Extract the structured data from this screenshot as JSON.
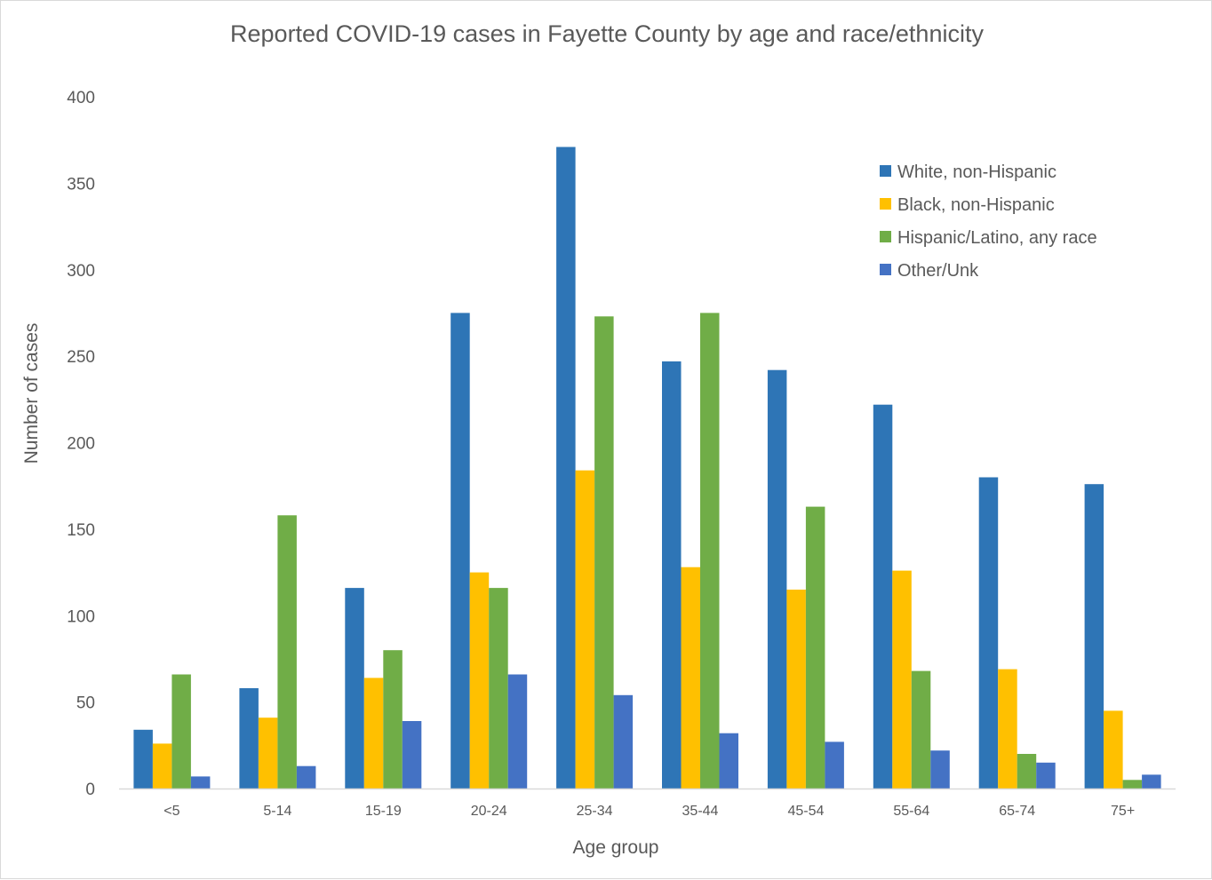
{
  "chart_data": {
    "type": "bar",
    "title": "Reported COVID-19 cases in Fayette County by age and race/ethnicity",
    "xlabel": "Age group",
    "ylabel": "Number of cases",
    "ylim": [
      0,
      400
    ],
    "yticks": [
      0,
      50,
      100,
      150,
      200,
      250,
      300,
      350,
      400
    ],
    "grid": false,
    "legend_position": "top-right",
    "categories": [
      "<5",
      "5-14",
      "15-19",
      "20-24",
      "25-34",
      "35-44",
      "45-54",
      "55-64",
      "65-74",
      "75+"
    ],
    "series": [
      {
        "name": "White, non-Hispanic",
        "color": "#2E75B6",
        "values": [
          34,
          58,
          116,
          275,
          371,
          247,
          242,
          222,
          180,
          176
        ]
      },
      {
        "name": "Black, non-Hispanic",
        "color": "#FFC000",
        "values": [
          26,
          41,
          64,
          125,
          184,
          128,
          115,
          126,
          69,
          45
        ]
      },
      {
        "name": "Hispanic/Latino, any race",
        "color": "#70AD47",
        "values": [
          66,
          158,
          80,
          116,
          273,
          275,
          163,
          68,
          20,
          5
        ]
      },
      {
        "name": "Other/Unk",
        "color": "#4472C4",
        "values": [
          7,
          13,
          39,
          66,
          54,
          32,
          27,
          22,
          15,
          8
        ]
      }
    ]
  }
}
